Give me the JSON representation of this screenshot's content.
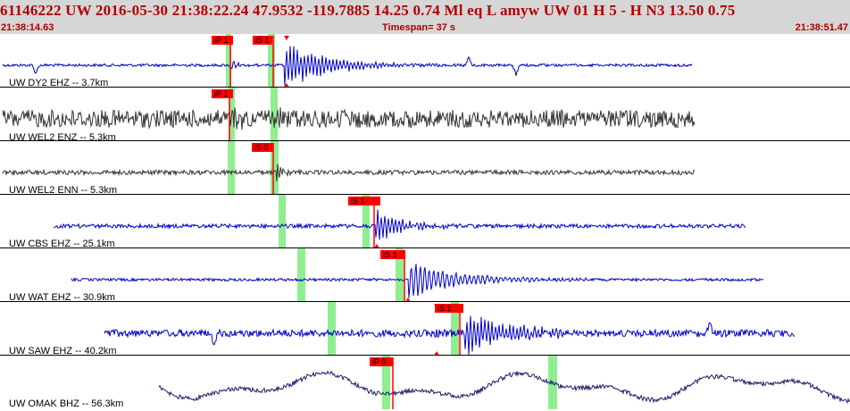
{
  "header": {
    "title": "61146222 UW 2016-05-30 21:38:22.24   47.9532 -119.7885  14.25  0.74 Ml  eq  L amyw     UW 01  H   5  -  H N3    13.50  0.75",
    "start_time": "21:38:14.63",
    "timespan": "Timespan=  37 s",
    "end_time": "21:38:51.47"
  },
  "colors": {
    "header_bg": "#d6d6d6",
    "header_text": "#b00000",
    "trace_blue": "#0000cc",
    "trace_dark": "#333333",
    "trace_navy": "#1a1a66",
    "pick_red": "#ff0000",
    "window_green": "#90ee90"
  },
  "traces": [
    {
      "label": "UW DY2 EHZ -- 3.7km",
      "color": "trace_blue",
      "picks": [
        "iP 1",
        "iS 1"
      ]
    },
    {
      "label": "UW WEL2 ENZ -- 5.3km",
      "color": "trace_dark",
      "picks": [
        "iP 1"
      ]
    },
    {
      "label": "UW WEL2 ENN -- 5.3km",
      "color": "trace_dark",
      "picks": [
        "iS 0"
      ]
    },
    {
      "label": "UW CBS EHZ -- 25.1km",
      "color": "trace_blue",
      "picks": [
        "iS 1"
      ]
    },
    {
      "label": "UW WAT EHZ -- 30.9km",
      "color": "trace_blue",
      "picks": [
        "iS 1"
      ]
    },
    {
      "label": "UW SAW EHZ -- 40.2km",
      "color": "trace_blue",
      "picks": [
        "iS 1"
      ]
    },
    {
      "label": "UW OMAK BHZ -- 56.3km",
      "color": "trace_navy",
      "picks": [
        "iP 0"
      ]
    }
  ]
}
